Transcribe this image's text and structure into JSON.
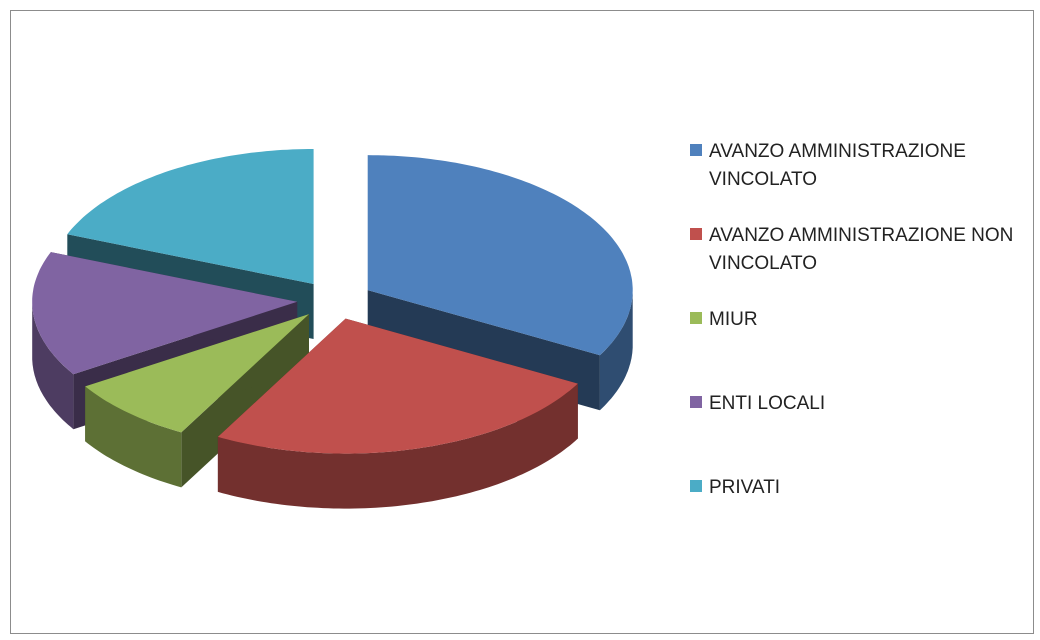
{
  "chart_data": {
    "type": "pie",
    "categories": [
      "AVANZO AMMINISTRAZIONE VINCOLATO",
      "AVANZO AMMINISTRAZIONE NON VINCOLATO",
      "MIUR",
      "ENTI LOCALI",
      "PRIVATI"
    ],
    "values": [
      33,
      25,
      8,
      15,
      19
    ],
    "colors": [
      "#4f81bd",
      "#c0504d",
      "#9bbb59",
      "#8064a2",
      "#4bacc6"
    ],
    "legend": "right"
  }
}
